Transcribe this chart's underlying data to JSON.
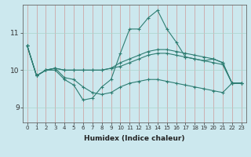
{
  "xlabel": "Humidex (Indice chaleur)",
  "ylabel": "",
  "bg_color": "#cce8ee",
  "line_color": "#2e7d72",
  "grid_color_major": "#aad4cc",
  "grid_color_minor": "#cc9999",
  "xlim": [
    -0.5,
    23.5
  ],
  "ylim": [
    8.6,
    11.75
  ],
  "yticks": [
    9,
    10,
    11
  ],
  "xticks": [
    0,
    1,
    2,
    3,
    4,
    5,
    6,
    7,
    8,
    9,
    10,
    11,
    12,
    13,
    14,
    15,
    16,
    17,
    18,
    19,
    20,
    21,
    22,
    23
  ],
  "lines": [
    {
      "x": [
        0,
        1,
        2,
        3,
        4,
        5,
        6,
        7,
        8,
        9,
        10,
        11,
        12,
        13,
        14,
        15,
        16,
        17,
        18,
        19,
        20,
        21,
        22,
        23
      ],
      "y": [
        10.65,
        9.85,
        10.0,
        10.0,
        9.75,
        9.6,
        9.2,
        9.25,
        9.55,
        9.75,
        10.45,
        11.1,
        11.1,
        11.4,
        11.6,
        11.1,
        10.75,
        10.35,
        10.3,
        10.25,
        10.3,
        10.2,
        9.65,
        9.65
      ]
    },
    {
      "x": [
        0,
        1,
        2,
        3,
        4,
        5,
        6,
        7,
        8,
        9,
        10,
        11,
        12,
        13,
        14,
        15,
        16,
        17,
        18,
        19,
        20,
        21,
        22,
        23
      ],
      "y": [
        10.65,
        9.85,
        10.0,
        10.05,
        10.0,
        10.0,
        10.0,
        10.0,
        10.0,
        10.05,
        10.1,
        10.2,
        10.3,
        10.4,
        10.45,
        10.45,
        10.4,
        10.35,
        10.3,
        10.25,
        10.2,
        10.15,
        9.65,
        9.65
      ]
    },
    {
      "x": [
        0,
        1,
        2,
        3,
        4,
        5,
        6,
        7,
        8,
        9,
        10,
        11,
        12,
        13,
        14,
        15,
        16,
        17,
        18,
        19,
        20,
        21,
        22,
        23
      ],
      "y": [
        10.65,
        9.85,
        10.0,
        10.05,
        10.0,
        10.0,
        10.0,
        10.0,
        10.0,
        10.05,
        10.2,
        10.3,
        10.4,
        10.5,
        10.55,
        10.55,
        10.5,
        10.45,
        10.4,
        10.35,
        10.3,
        10.2,
        9.65,
        9.65
      ]
    },
    {
      "x": [
        0,
        1,
        2,
        3,
        4,
        5,
        6,
        7,
        8,
        9,
        10,
        11,
        12,
        13,
        14,
        15,
        16,
        17,
        18,
        19,
        20,
        21,
        22,
        23
      ],
      "y": [
        10.65,
        9.85,
        10.0,
        10.05,
        9.8,
        9.75,
        9.55,
        9.4,
        9.35,
        9.4,
        9.55,
        9.65,
        9.7,
        9.75,
        9.75,
        9.7,
        9.65,
        9.6,
        9.55,
        9.5,
        9.45,
        9.4,
        9.65,
        9.65
      ]
    }
  ]
}
